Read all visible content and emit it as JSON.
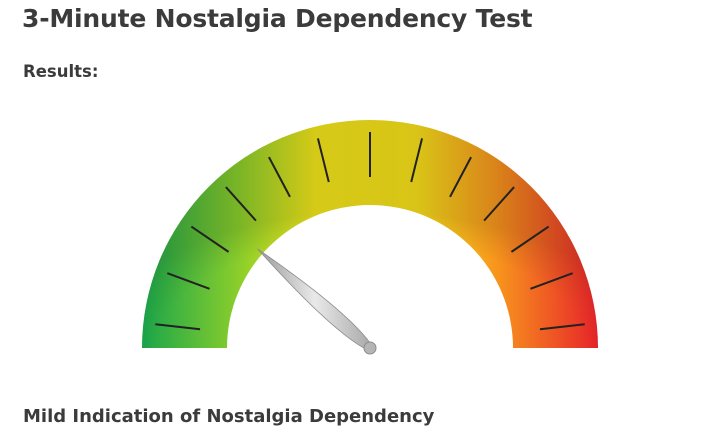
{
  "title": "3-Minute Nostalgia Dependency Test",
  "results_label": "Results:",
  "result_text": "Mild Indication of Nostalgia Dependency",
  "gauge": {
    "tick_count": 13,
    "level": 0.23,
    "colors": {
      "low": "#1aa64a",
      "mid_low": "#8fcf2a",
      "mid": "#f7e21a",
      "mid_high": "#f7941d",
      "high": "#e8242a",
      "tick": "#222222",
      "needle": "#bcbcbc"
    }
  }
}
